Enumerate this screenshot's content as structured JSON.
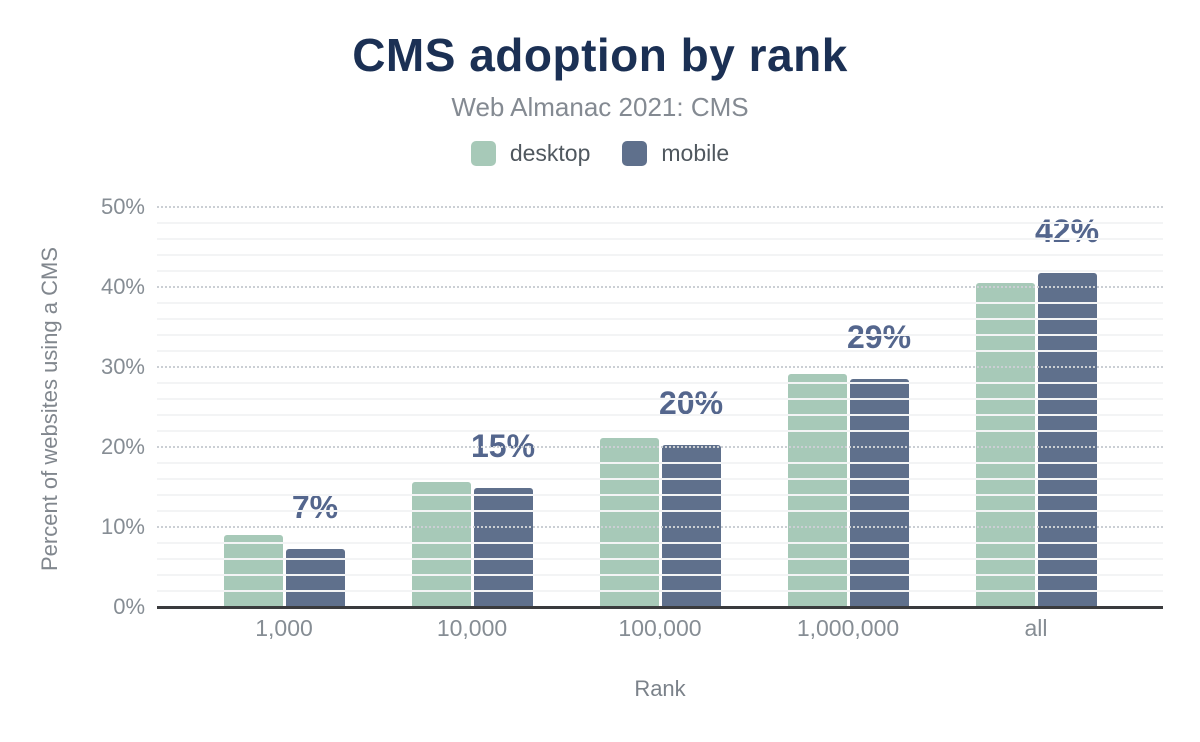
{
  "figure": {
    "title": "CMS adoption by rank",
    "subtitle": "Web Almanac 2021: CMS"
  },
  "legend": [
    {
      "label": "desktop",
      "color": "#a7c9b8"
    },
    {
      "label": "mobile",
      "color": "#5f708c"
    }
  ],
  "chart_data": {
    "type": "bar",
    "title": "CMS adoption by rank",
    "subtitle": "Web Almanac 2021: CMS",
    "categories": [
      "1,000",
      "10,000",
      "100,000",
      "1,000,000",
      "all"
    ],
    "category_keys": [
      "1000",
      "10000",
      "100000",
      "1000000",
      "all"
    ],
    "series": [
      {
        "name": "desktop",
        "color": "#a7c9b8",
        "values": [
          9.0,
          15.6,
          21.1,
          29.1,
          40.5
        ]
      },
      {
        "name": "mobile",
        "color": "#5f708c",
        "values": [
          7.2,
          14.9,
          20.3,
          28.5,
          41.7
        ]
      }
    ],
    "annotations": [
      "7%",
      "15%",
      "20%",
      "29%",
      "42%"
    ],
    "annotation_series": "mobile",
    "annotation_color": "#54668d",
    "xlabel": "Rank",
    "ylabel": "Percent of websites using a CMS",
    "ylim": [
      0,
      50
    ],
    "yticks": [
      0,
      10,
      20,
      30,
      40,
      50
    ],
    "ytick_labels": [
      "0%",
      "10%",
      "20%",
      "30%",
      "40%",
      "50%"
    ],
    "minor_tick_step": 2,
    "grid": true,
    "legend_position": "top"
  }
}
